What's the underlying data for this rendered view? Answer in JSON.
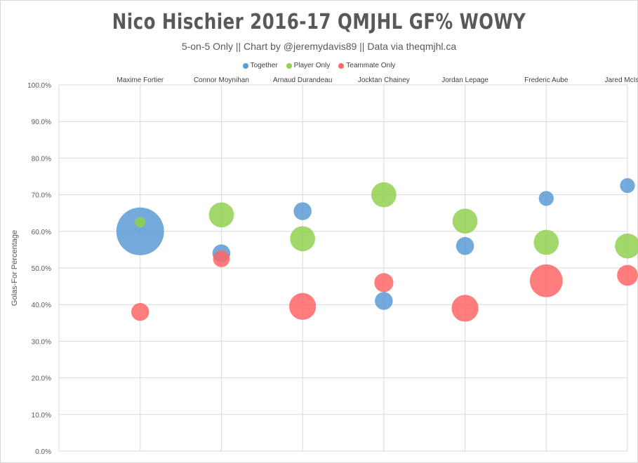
{
  "chart_data": {
    "type": "bubble",
    "title": "Nico Hischier 2016-17 QMJHL GF% WOWY",
    "subtitle": "5-on-5 Only || Chart by @jeremydavis89 || Data via theqmjhl.ca",
    "ylabel": "Golas-For Percentage",
    "ylim": [
      0,
      100
    ],
    "yticks": [
      "0.0%",
      "10.0%",
      "20.0%",
      "30.0%",
      "40.0%",
      "50.0%",
      "60.0%",
      "70.0%",
      "80.0%",
      "90.0%",
      "100.0%"
    ],
    "categories": [
      "Maxime Fortier",
      "Connor Moynihan",
      "Arnaud Durandeau",
      "Jocktan Chainey",
      "Jordan Lepage",
      "Frederic Aube",
      "Jared McIsaac"
    ],
    "legend_position": "top",
    "grid": true,
    "series": [
      {
        "name": "Together",
        "color": "#5b9bd5",
        "values": [
          60.0,
          54.0,
          65.5,
          41.0,
          56.0,
          69.0,
          72.5
        ],
        "sizes": [
          80,
          30,
          30,
          30,
          30,
          25,
          25
        ]
      },
      {
        "name": "Player Only",
        "color": "#92d050",
        "values": [
          62.5,
          64.5,
          58.0,
          70.0,
          62.8,
          57.0,
          56.0
        ],
        "sizes": [
          18,
          42,
          42,
          42,
          42,
          42,
          42
        ]
      },
      {
        "name": "Teammate Only",
        "color": "#ff6666",
        "values": [
          38.0,
          52.5,
          39.5,
          46.0,
          39.0,
          46.5,
          48.0
        ],
        "sizes": [
          30,
          28,
          45,
          32,
          45,
          55,
          35
        ]
      }
    ]
  }
}
